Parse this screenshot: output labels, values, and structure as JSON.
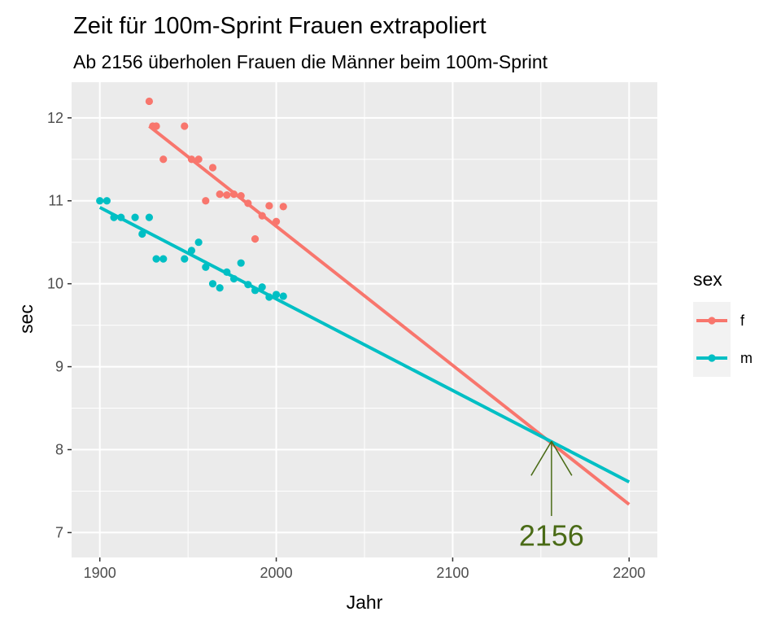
{
  "chart_data": {
    "type": "scatter",
    "title": "Zeit für 100m-Sprint Frauen extrapoliert",
    "subtitle": "Ab 2156 überholen Frauen die Männer beim 100m-Sprint",
    "xlabel": "Jahr",
    "ylabel": "sec",
    "xlim": [
      1884,
      2216
    ],
    "ylim": [
      6.7,
      12.43
    ],
    "x_ticks": [
      1900,
      2000,
      2100,
      2200
    ],
    "y_ticks": [
      7,
      8,
      9,
      10,
      11,
      12
    ],
    "grid": true,
    "panel_background": "#ebebeb",
    "legend": {
      "title": "sex",
      "position": "right",
      "entries": [
        {
          "label": "f",
          "color": "#f8766d"
        },
        {
          "label": "m",
          "color": "#00bfc4"
        }
      ]
    },
    "series": [
      {
        "name": "f",
        "color": "#f8766d",
        "points": [
          [
            1928,
            12.2
          ],
          [
            1930,
            11.9
          ],
          [
            1932,
            11.9
          ],
          [
            1936,
            11.5
          ],
          [
            1948,
            11.9
          ],
          [
            1952,
            11.5
          ],
          [
            1956,
            11.5
          ],
          [
            1960,
            11.0
          ],
          [
            1964,
            11.4
          ],
          [
            1968,
            11.08
          ],
          [
            1972,
            11.07
          ],
          [
            1976,
            11.08
          ],
          [
            1980,
            11.06
          ],
          [
            1984,
            10.97
          ],
          [
            1988,
            10.54
          ],
          [
            1992,
            10.82
          ],
          [
            1996,
            10.94
          ],
          [
            2000,
            10.75
          ],
          [
            2004,
            10.93
          ]
        ],
        "trend": [
          [
            1928,
            11.9
          ],
          [
            2200,
            7.34
          ]
        ]
      },
      {
        "name": "m",
        "color": "#00bfc4",
        "points": [
          [
            1900,
            11.0
          ],
          [
            1904,
            11.0
          ],
          [
            1908,
            10.8
          ],
          [
            1912,
            10.8
          ],
          [
            1920,
            10.8
          ],
          [
            1924,
            10.6
          ],
          [
            1928,
            10.8
          ],
          [
            1932,
            10.3
          ],
          [
            1936,
            10.3
          ],
          [
            1948,
            10.3
          ],
          [
            1952,
            10.4
          ],
          [
            1956,
            10.5
          ],
          [
            1960,
            10.2
          ],
          [
            1964,
            10.0
          ],
          [
            1968,
            9.95
          ],
          [
            1972,
            10.14
          ],
          [
            1976,
            10.06
          ],
          [
            1980,
            10.25
          ],
          [
            1984,
            9.99
          ],
          [
            1988,
            9.92
          ],
          [
            1992,
            9.96
          ],
          [
            1996,
            9.84
          ],
          [
            2000,
            9.87
          ],
          [
            2004,
            9.85
          ]
        ],
        "trend": [
          [
            1900,
            10.92
          ],
          [
            2200,
            7.61
          ]
        ]
      }
    ],
    "annotation": {
      "text": "2156",
      "color": "#4a6b16",
      "arrow_tip": [
        2156,
        8.1
      ],
      "arrow_tail": [
        2156,
        7.2
      ],
      "label_at": [
        2156,
        6.97
      ]
    }
  }
}
